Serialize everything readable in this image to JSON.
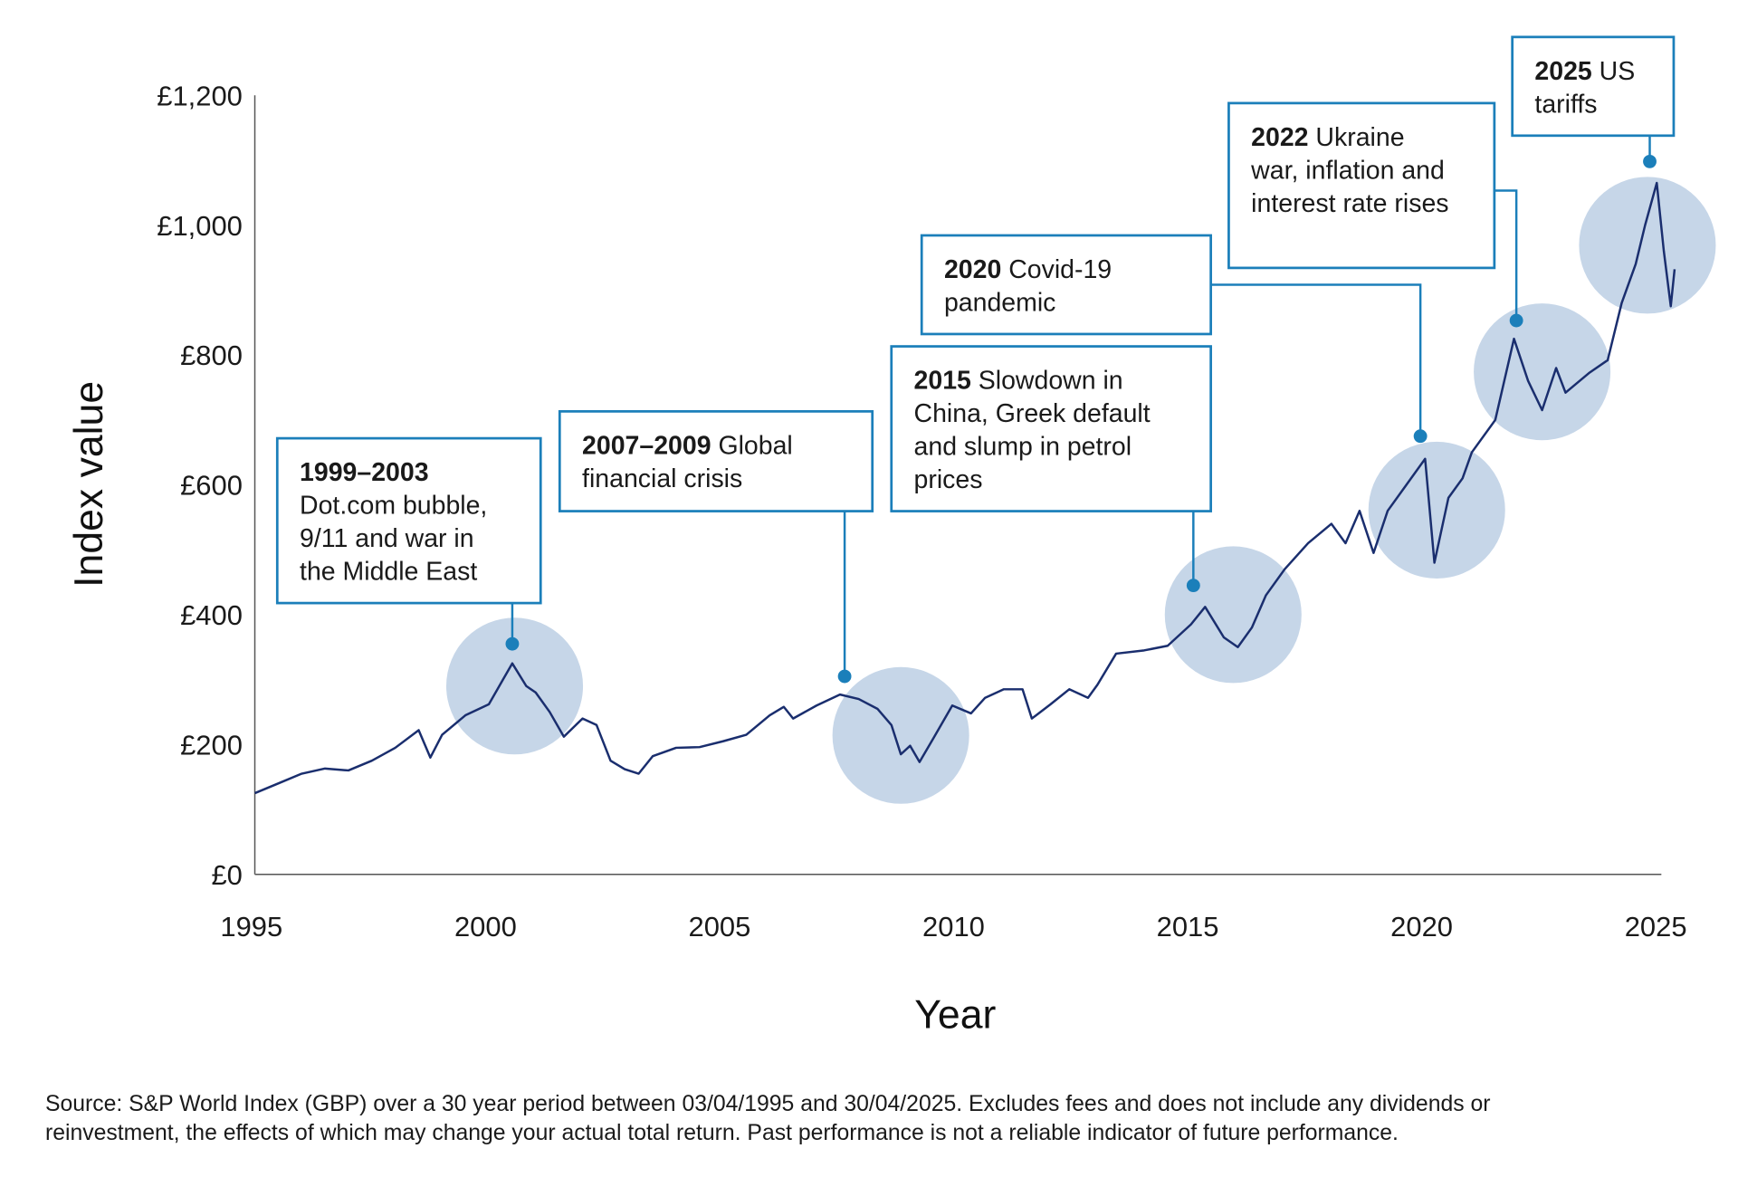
{
  "chart_data": {
    "type": "line",
    "xlabel": "Year",
    "ylabel": "Index value",
    "xlim": [
      1995,
      2025
    ],
    "ylim": [
      0,
      1200
    ],
    "x_ticks": [
      "1995",
      "2000",
      "2005",
      "2010",
      "2015",
      "2020",
      "2025"
    ],
    "y_ticks": [
      "£0",
      "£200",
      "£400",
      "£600",
      "£800",
      "£1,000",
      "£1,200"
    ],
    "grid": false,
    "series": [
      {
        "points": [
          [
            1995.0,
            125
          ],
          [
            1995.5,
            140
          ],
          [
            1996.0,
            155
          ],
          [
            1996.5,
            163
          ],
          [
            1997.0,
            160
          ],
          [
            1997.5,
            175
          ],
          [
            1998.0,
            195
          ],
          [
            1998.5,
            222
          ],
          [
            1998.75,
            180
          ],
          [
            1999.0,
            215
          ],
          [
            1999.5,
            245
          ],
          [
            2000.0,
            262
          ],
          [
            2000.3,
            300
          ],
          [
            2000.5,
            325
          ],
          [
            2000.8,
            290
          ],
          [
            2001.0,
            280
          ],
          [
            2001.3,
            250
          ],
          [
            2001.6,
            212
          ],
          [
            2002.0,
            240
          ],
          [
            2002.3,
            230
          ],
          [
            2002.6,
            175
          ],
          [
            2002.9,
            162
          ],
          [
            2003.2,
            155
          ],
          [
            2003.5,
            182
          ],
          [
            2004.0,
            195
          ],
          [
            2004.5,
            196
          ],
          [
            2005.0,
            205
          ],
          [
            2005.5,
            215
          ],
          [
            2006.0,
            245
          ],
          [
            2006.3,
            258
          ],
          [
            2006.5,
            240
          ],
          [
            2007.0,
            260
          ],
          [
            2007.5,
            277
          ],
          [
            2007.9,
            270
          ],
          [
            2008.3,
            255
          ],
          [
            2008.6,
            230
          ],
          [
            2008.8,
            185
          ],
          [
            2009.0,
            198
          ],
          [
            2009.2,
            173
          ],
          [
            2009.5,
            210
          ],
          [
            2009.9,
            260
          ],
          [
            2010.3,
            248
          ],
          [
            2010.6,
            272
          ],
          [
            2011.0,
            285
          ],
          [
            2011.4,
            285
          ],
          [
            2011.6,
            240
          ],
          [
            2012.0,
            262
          ],
          [
            2012.4,
            285
          ],
          [
            2012.8,
            272
          ],
          [
            2013.0,
            292
          ],
          [
            2013.4,
            340
          ],
          [
            2014.0,
            345
          ],
          [
            2014.5,
            352
          ],
          [
            2015.0,
            385
          ],
          [
            2015.3,
            412
          ],
          [
            2015.7,
            365
          ],
          [
            2016.0,
            350
          ],
          [
            2016.3,
            380
          ],
          [
            2016.6,
            430
          ],
          [
            2017.0,
            470
          ],
          [
            2017.5,
            510
          ],
          [
            2018.0,
            540
          ],
          [
            2018.3,
            510
          ],
          [
            2018.6,
            560
          ],
          [
            2018.9,
            495
          ],
          [
            2019.2,
            560
          ],
          [
            2019.6,
            600
          ],
          [
            2020.0,
            640
          ],
          [
            2020.2,
            480
          ],
          [
            2020.5,
            580
          ],
          [
            2020.8,
            610
          ],
          [
            2021.0,
            650
          ],
          [
            2021.5,
            700
          ],
          [
            2021.9,
            825
          ],
          [
            2022.2,
            760
          ],
          [
            2022.5,
            715
          ],
          [
            2022.8,
            780
          ],
          [
            2023.0,
            742
          ],
          [
            2023.5,
            772
          ],
          [
            2023.9,
            792
          ],
          [
            2024.2,
            880
          ],
          [
            2024.5,
            940
          ],
          [
            2024.7,
            1000
          ],
          [
            2024.95,
            1065
          ],
          [
            2025.1,
            960
          ],
          [
            2025.25,
            875
          ],
          [
            2025.33,
            932
          ]
        ],
        "color": "#1a2e6e"
      }
    ],
    "highlight_circles": [
      {
        "x": 2000.55,
        "y": 290
      },
      {
        "x": 2008.8,
        "y": 214
      },
      {
        "x": 2015.9,
        "y": 400
      },
      {
        "x": 2020.25,
        "y": 561
      },
      {
        "x": 2022.5,
        "y": 774
      },
      {
        "x": 2024.75,
        "y": 969
      }
    ],
    "annotations": [
      {
        "id": "1999-2003",
        "point": [
          2000.5,
          355
        ],
        "lines": [
          {
            "b": "1999–2003",
            "t": ""
          },
          {
            "b": "",
            "t": "Dot.com bubble,"
          },
          {
            "b": "",
            "t": "9/11 and war in"
          },
          {
            "b": "",
            "t": "the Middle East"
          }
        ]
      },
      {
        "id": "2007-2009",
        "point": [
          2007.6,
          305
        ],
        "lines": [
          {
            "b": "2007–2009",
            "t": " Global"
          },
          {
            "b": "",
            "t": "financial crisis"
          }
        ]
      },
      {
        "id": "2015",
        "point": [
          2015.05,
          445
        ],
        "lines": [
          {
            "b": "2015",
            "t": " Slowdown in"
          },
          {
            "b": "",
            "t": "China, Greek default"
          },
          {
            "b": "",
            "t": "and slump in petrol"
          },
          {
            "b": "",
            "t": "prices"
          }
        ]
      },
      {
        "id": "2020",
        "point": [
          2019.9,
          675
        ],
        "lines": [
          {
            "b": "2020",
            "t": " Covid-19"
          },
          {
            "b": "",
            "t": "pandemic"
          }
        ]
      },
      {
        "id": "2022",
        "point": [
          2021.95,
          853
        ],
        "lines": [
          {
            "b": "2022",
            "t": " Ukraine"
          },
          {
            "b": "",
            "t": "war, inflation and"
          },
          {
            "b": "",
            "t": "interest rate rises"
          }
        ]
      },
      {
        "id": "2025",
        "point": [
          2024.8,
          1098
        ],
        "lines": [
          {
            "b": "2025",
            "t": " US"
          },
          {
            "b": "",
            "t": "tariffs"
          }
        ]
      }
    ],
    "colors": {
      "line": "#1a2e6e",
      "circle": "#c6d6e8",
      "accent": "#1b7fba"
    }
  },
  "footnote": [
    "Source: S&P World Index (GBP) over a 30 year period between 03/04/1995 and 30/04/2025. Excludes fees and does not include any dividends or",
    "reinvestment, the effects of which may change your actual total return. Past performance is not a reliable indicator of future performance."
  ]
}
